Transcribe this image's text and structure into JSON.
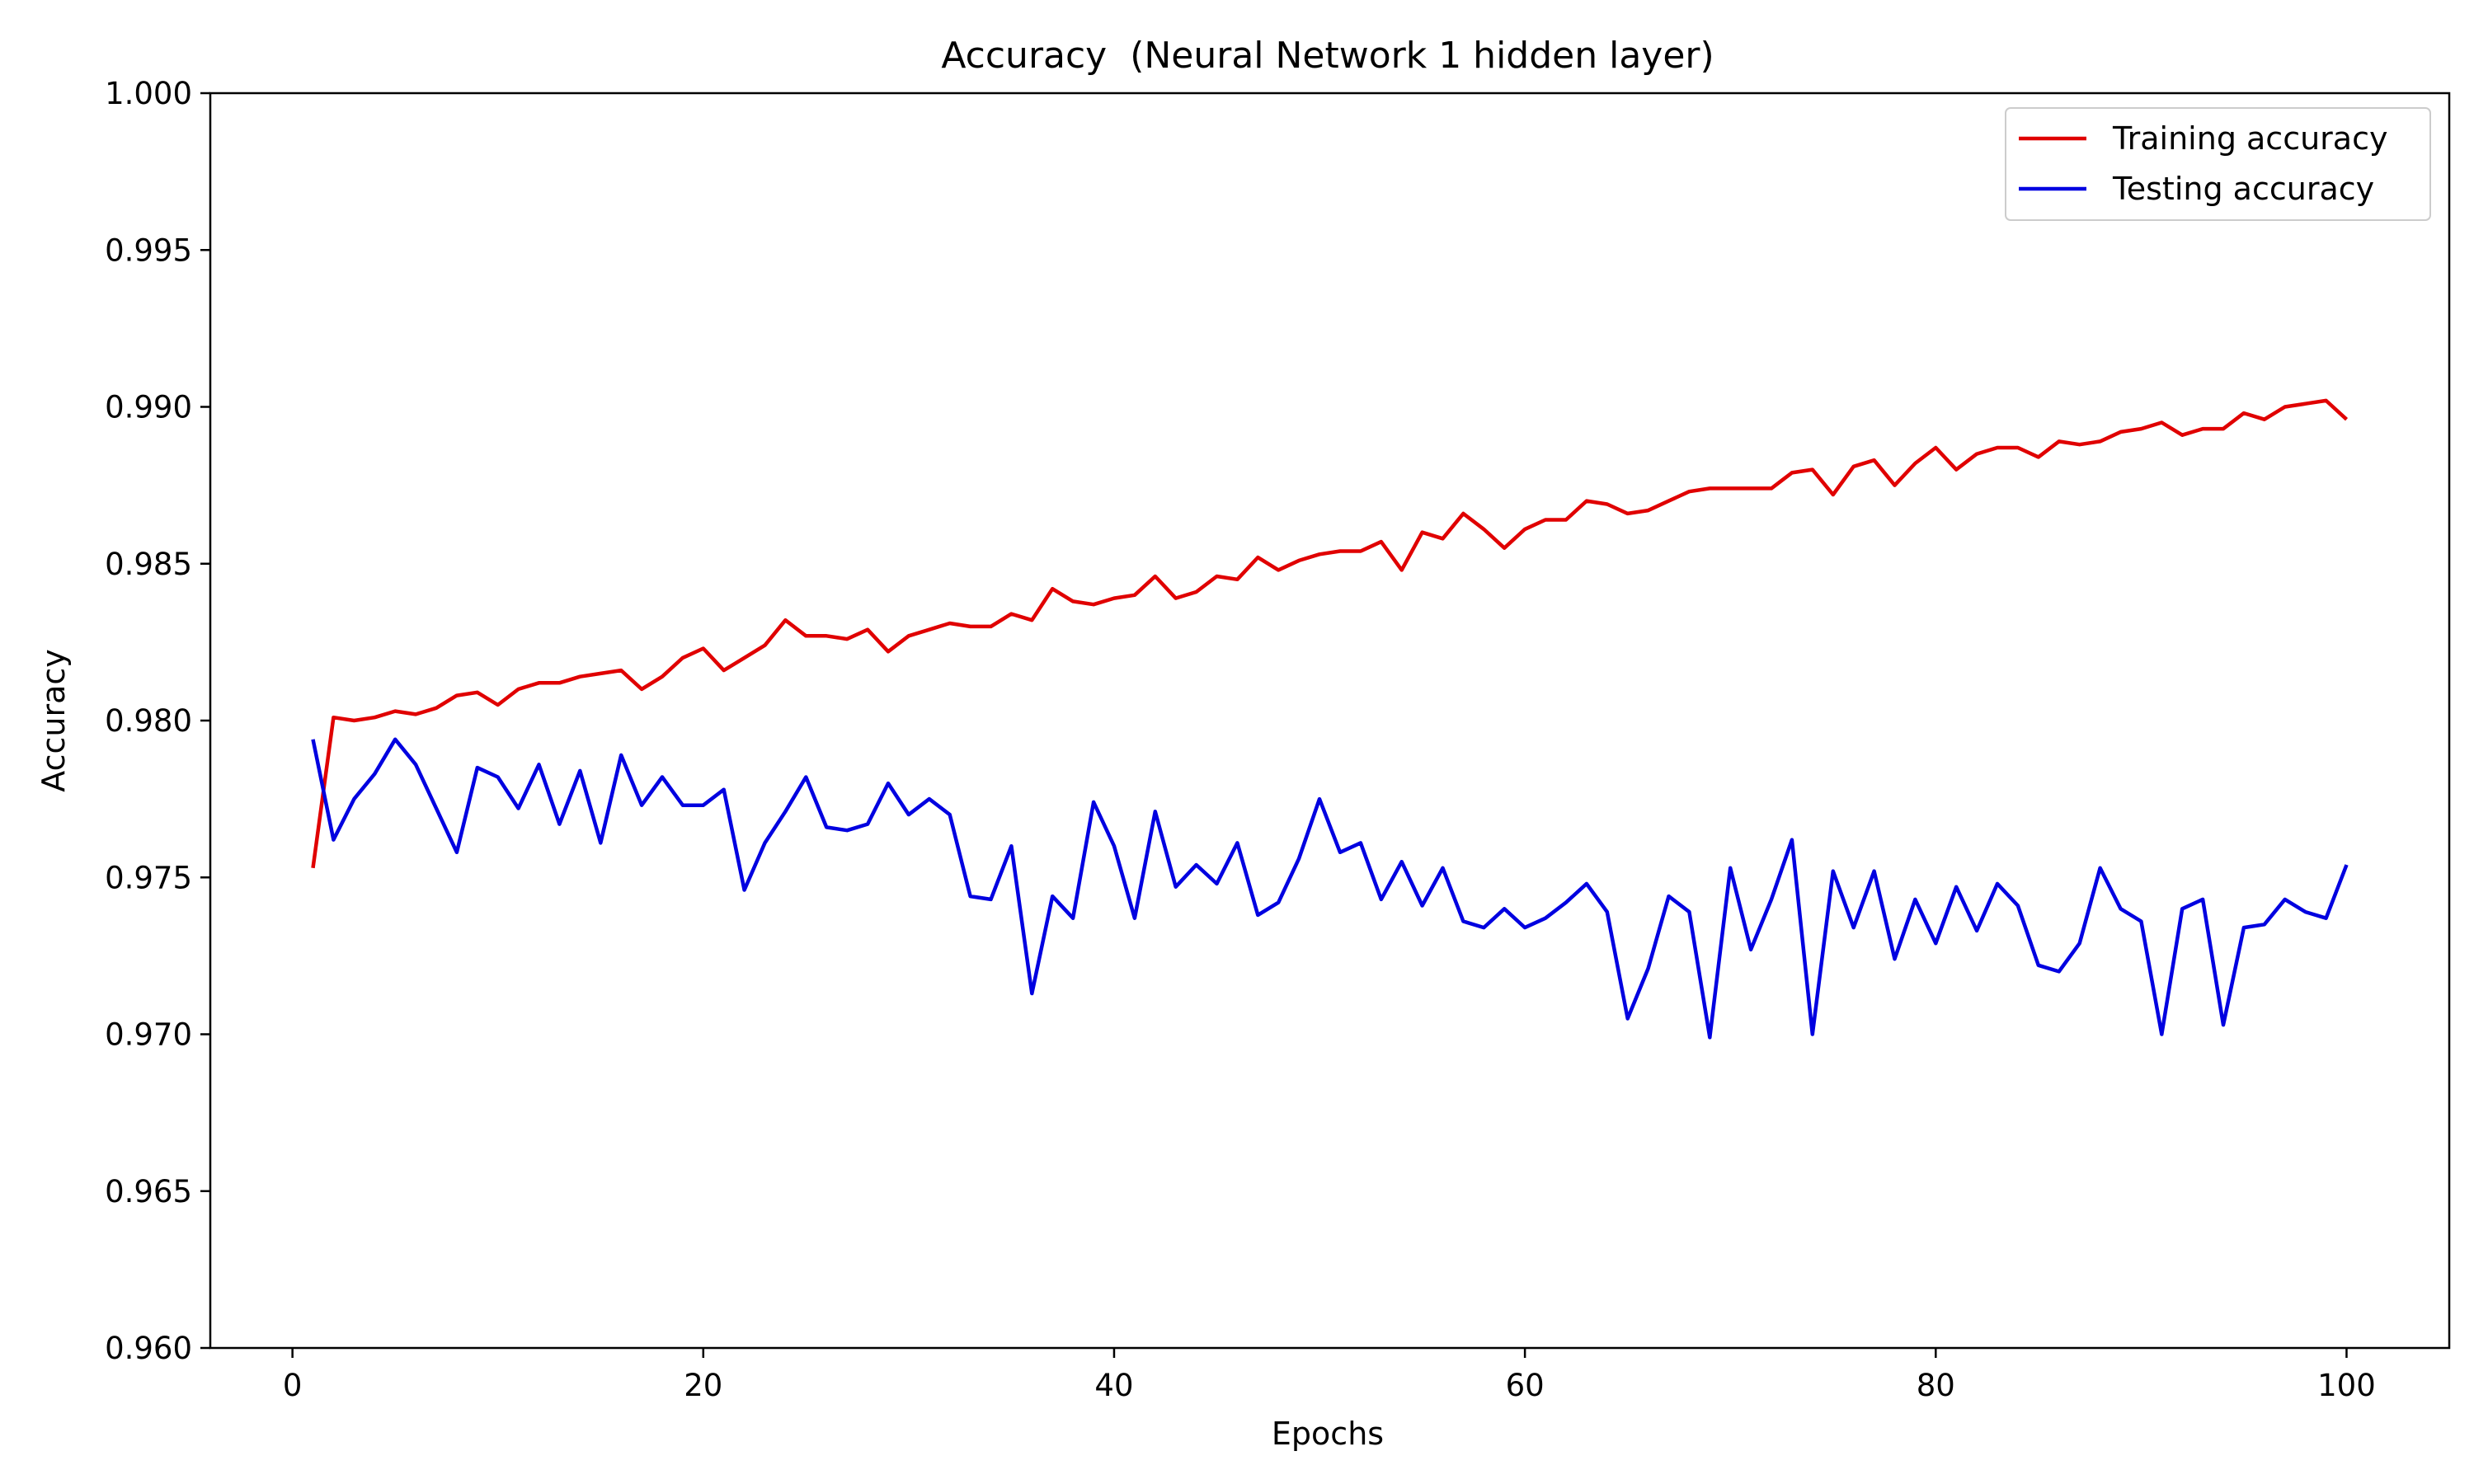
{
  "chart_data": {
    "type": "line",
    "title": "Accuracy  (Neural Network 1 hidden layer)",
    "xlabel": "Epochs",
    "ylabel": "Accuracy",
    "xlim": [
      -4,
      105
    ],
    "ylim": [
      0.96,
      1.0
    ],
    "xticks": [
      0,
      20,
      40,
      60,
      80,
      100
    ],
    "xtick_labels": [
      "0",
      "20",
      "40",
      "60",
      "80",
      "100"
    ],
    "yticks": [
      0.96,
      0.965,
      0.97,
      0.975,
      0.98,
      0.985,
      0.99,
      0.995,
      1.0
    ],
    "ytick_labels": [
      "0.960",
      "0.965",
      "0.970",
      "0.975",
      "0.980",
      "0.985",
      "0.990",
      "0.995",
      "1.000"
    ],
    "grid": false,
    "legend": "top-right",
    "x": [
      1,
      2,
      3,
      4,
      5,
      6,
      7,
      8,
      9,
      10,
      11,
      12,
      13,
      14,
      15,
      16,
      17,
      18,
      19,
      20,
      21,
      22,
      23,
      24,
      25,
      26,
      27,
      28,
      29,
      30,
      31,
      32,
      33,
      34,
      35,
      36,
      37,
      38,
      39,
      40,
      41,
      42,
      43,
      44,
      45,
      46,
      47,
      48,
      49,
      50,
      51,
      52,
      53,
      54,
      55,
      56,
      57,
      58,
      59,
      60,
      61,
      62,
      63,
      64,
      65,
      66,
      67,
      68,
      69,
      70,
      71,
      72,
      73,
      74,
      75,
      76,
      77,
      78,
      79,
      80,
      81,
      82,
      83,
      84,
      85,
      86,
      87,
      88,
      89,
      90,
      91,
      92,
      93,
      94,
      95,
      96,
      97,
      98,
      99,
      100
    ],
    "series": [
      {
        "name": "Training accuracy",
        "color": "#e00000",
        "values": [
          0.9753,
          0.9801,
          0.98,
          0.9801,
          0.9803,
          0.9802,
          0.9804,
          0.9808,
          0.9809,
          0.9805,
          0.981,
          0.9812,
          0.9812,
          0.9814,
          0.9815,
          0.9816,
          0.981,
          0.9814,
          0.982,
          0.9823,
          0.9816,
          0.982,
          0.9824,
          0.9832,
          0.9827,
          0.9827,
          0.9826,
          0.9829,
          0.9822,
          0.9827,
          0.9829,
          0.9831,
          0.983,
          0.983,
          0.9834,
          0.9832,
          0.9842,
          0.9838,
          0.9837,
          0.9839,
          0.984,
          0.9846,
          0.9839,
          0.9841,
          0.9846,
          0.9845,
          0.9852,
          0.9848,
          0.9851,
          0.9853,
          0.9854,
          0.9854,
          0.9857,
          0.9848,
          0.986,
          0.9858,
          0.9866,
          0.9861,
          0.9855,
          0.9861,
          0.9864,
          0.9864,
          0.987,
          0.9869,
          0.9866,
          0.9867,
          0.987,
          0.9873,
          0.9874,
          0.9874,
          0.9874,
          0.9874,
          0.9879,
          0.988,
          0.9872,
          0.9881,
          0.9883,
          0.9875,
          0.9882,
          0.9887,
          0.988,
          0.9885,
          0.9887,
          0.9887,
          0.9884,
          0.9889,
          0.9888,
          0.9889,
          0.9892,
          0.9893,
          0.9895,
          0.9891,
          0.9893,
          0.9893,
          0.9898,
          0.9896,
          0.99,
          0.9901,
          0.9902,
          0.9896
        ]
      },
      {
        "name": "Testing accuracy",
        "color": "#0000e0",
        "values": [
          0.9794,
          0.9762,
          0.9775,
          0.9783,
          0.9794,
          0.9786,
          0.9772,
          0.9758,
          0.9785,
          0.9782,
          0.9772,
          0.9786,
          0.9767,
          0.9784,
          0.9761,
          0.9789,
          0.9773,
          0.9782,
          0.9773,
          0.9773,
          0.9778,
          0.9746,
          0.9761,
          0.9771,
          0.9782,
          0.9766,
          0.9765,
          0.9767,
          0.978,
          0.977,
          0.9775,
          0.977,
          0.9744,
          0.9743,
          0.976,
          0.9713,
          0.9744,
          0.9737,
          0.9774,
          0.976,
          0.9737,
          0.9771,
          0.9747,
          0.9754,
          0.9748,
          0.9761,
          0.9738,
          0.9742,
          0.9756,
          0.9775,
          0.9758,
          0.9761,
          0.9743,
          0.9755,
          0.9741,
          0.9753,
          0.9736,
          0.9734,
          0.974,
          0.9734,
          0.9737,
          0.9742,
          0.9748,
          0.9739,
          0.9705,
          0.9721,
          0.9744,
          0.9739,
          0.9699,
          0.9753,
          0.9727,
          0.9743,
          0.9762,
          0.97,
          0.9752,
          0.9734,
          0.9752,
          0.9724,
          0.9743,
          0.9729,
          0.9747,
          0.9733,
          0.9748,
          0.9741,
          0.9722,
          0.972,
          0.9729,
          0.9753,
          0.974,
          0.9736,
          0.97,
          0.974,
          0.9743,
          0.9703,
          0.9734,
          0.9735,
          0.9743,
          0.9739,
          0.9737,
          0.9754
        ]
      }
    ]
  }
}
